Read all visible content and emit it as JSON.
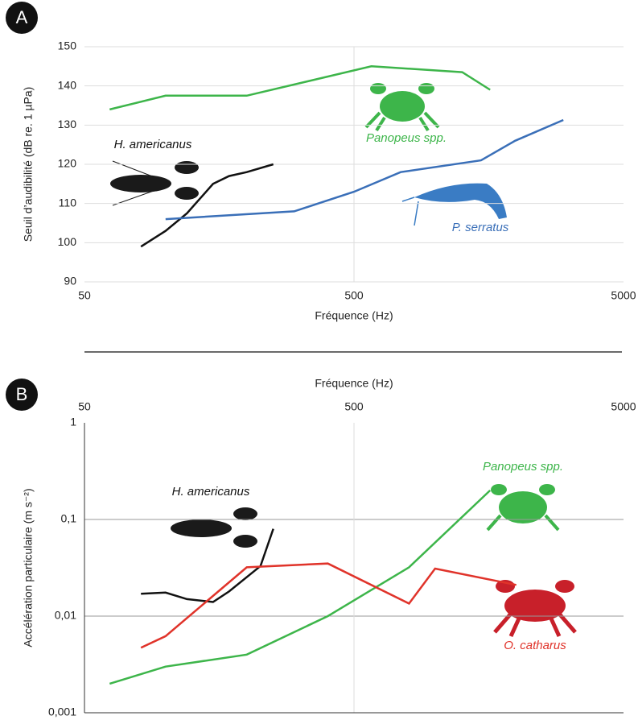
{
  "chart_data": [
    {
      "type": "line",
      "panel": "A",
      "x_label": "Fréquence (Hz)",
      "y_label": "Seuil d’audibilité (dB re. 1 µPa)",
      "log_x": true,
      "log_y": false,
      "xlim": [
        50,
        5000
      ],
      "xticks": [
        50,
        500,
        5000
      ],
      "ylim": [
        90,
        150
      ],
      "yticks": [
        90,
        100,
        110,
        120,
        130,
        140,
        150
      ],
      "grid": true,
      "series": [
        {
          "name": "H. americanus",
          "color": "#111111",
          "x": [
            81,
            100,
            120,
            150,
            172,
            200,
            251
          ],
          "values": [
            99,
            103,
            107.5,
            115,
            117,
            118,
            120
          ]
        },
        {
          "name": "Panopeus spp.",
          "color": "#3db54a",
          "x": [
            62,
            100,
            200,
            580,
            1260,
            1600
          ],
          "values": [
            134,
            137.5,
            137.5,
            145,
            143.5,
            139
          ]
        },
        {
          "name": "P. serratus",
          "color": "#3a6fb8",
          "x": [
            100,
            300,
            500,
            745,
            1480,
            1980,
            2990
          ],
          "values": [
            106,
            108,
            113,
            118,
            121,
            126,
            131.3
          ]
        }
      ]
    },
    {
      "type": "line",
      "panel": "B",
      "x_label": "Fréquence (Hz)",
      "y_label": "Accélération particulaire (m s⁻²)",
      "log_x": true,
      "log_y": true,
      "xlim": [
        50,
        5000
      ],
      "xticks": [
        50,
        500,
        5000
      ],
      "ylim": [
        0.001,
        1
      ],
      "yticks": [
        {
          "value": 0.001,
          "label": "0,001"
        },
        {
          "value": 0.01,
          "label": "0,01"
        },
        {
          "value": 0.1,
          "label": "0,1"
        },
        1
      ],
      "grid": true,
      "series": [
        {
          "name": "H. americanus",
          "color": "#111111",
          "x": [
            81,
            100,
            120,
            150,
            172,
            225,
            251
          ],
          "values": [
            0.017,
            0.0175,
            0.015,
            0.014,
            0.018,
            0.033,
            0.08
          ]
        },
        {
          "name": "Panopeus spp.",
          "color": "#3db54a",
          "x": [
            62,
            100,
            200,
            400,
            800,
            1600
          ],
          "values": [
            0.002,
            0.003,
            0.004,
            0.01,
            0.032,
            0.2
          ]
        },
        {
          "name": "O. catharus",
          "color": "#e0332a",
          "x": [
            81,
            100,
            200,
            400,
            800,
            1000,
            2000
          ],
          "values": [
            0.0047,
            0.0062,
            0.032,
            0.035,
            0.0135,
            0.031,
            0.021
          ]
        }
      ]
    }
  ]
}
